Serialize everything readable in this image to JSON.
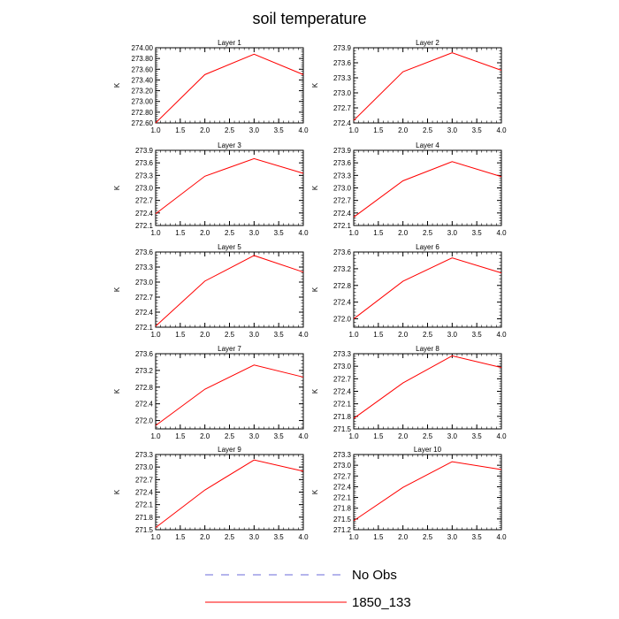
{
  "title": "soil temperature",
  "legend": [
    {
      "label": "No Obs",
      "color": "#6a6ad8",
      "dashed": true
    },
    {
      "label": "1850_133",
      "color": "#ff0000",
      "dashed": false
    }
  ],
  "chart_data": [
    {
      "type": "line",
      "title": "Layer 1",
      "xlabel": "",
      "ylabel": "K",
      "xlim": [
        1.0,
        4.0
      ],
      "ylim": [
        272.6,
        274.0
      ],
      "xticks": [
        "1.0",
        "1.5",
        "2.0",
        "2.5",
        "3.0",
        "3.5",
        "4.0"
      ],
      "yticks": [
        "274.00",
        "273.80",
        "273.60",
        "273.40",
        "273.20",
        "273.00",
        "272.80",
        "272.60"
      ],
      "series": [
        {
          "name": "1850_133",
          "x": [
            1.0,
            2.0,
            3.0,
            4.0
          ],
          "values": [
            272.6,
            273.5,
            273.88,
            273.5
          ]
        }
      ]
    },
    {
      "type": "line",
      "title": "Layer 2",
      "xlabel": "",
      "ylabel": "K",
      "xlim": [
        1.0,
        4.0
      ],
      "ylim": [
        272.4,
        273.9
      ],
      "xticks": [
        "1.0",
        "1.5",
        "2.0",
        "2.5",
        "3.0",
        "3.5",
        "4.0"
      ],
      "yticks": [
        "273.9",
        "273.6",
        "273.3",
        "273.0",
        "272.7",
        "272.4"
      ],
      "series": [
        {
          "name": "1850_133",
          "x": [
            1.0,
            2.0,
            3.0,
            4.0
          ],
          "values": [
            272.45,
            273.42,
            273.8,
            273.45
          ]
        }
      ]
    },
    {
      "type": "line",
      "title": "Layer 3",
      "xlabel": "",
      "ylabel": "K",
      "xlim": [
        1.0,
        4.0
      ],
      "ylim": [
        272.1,
        273.9
      ],
      "xticks": [
        "1.0",
        "1.5",
        "2.0",
        "2.5",
        "3.0",
        "3.5",
        "4.0"
      ],
      "yticks": [
        "273.9",
        "273.6",
        "273.3",
        "273.0",
        "272.7",
        "272.4",
        "272.1"
      ],
      "series": [
        {
          "name": "1850_133",
          "x": [
            1.0,
            2.0,
            3.0,
            4.0
          ],
          "values": [
            272.38,
            273.28,
            273.7,
            273.35
          ]
        }
      ]
    },
    {
      "type": "line",
      "title": "Layer 4",
      "xlabel": "",
      "ylabel": "K",
      "xlim": [
        1.0,
        4.0
      ],
      "ylim": [
        272.1,
        273.9
      ],
      "xticks": [
        "1.0",
        "1.5",
        "2.0",
        "2.5",
        "3.0",
        "3.5",
        "4.0"
      ],
      "yticks": [
        "273.9",
        "273.6",
        "273.3",
        "273.0",
        "272.7",
        "272.4",
        "272.1"
      ],
      "series": [
        {
          "name": "1850_133",
          "x": [
            1.0,
            2.0,
            3.0,
            4.0
          ],
          "values": [
            272.3,
            273.17,
            273.63,
            273.27
          ]
        }
      ]
    },
    {
      "type": "line",
      "title": "Layer 5",
      "xlabel": "",
      "ylabel": "K",
      "xlim": [
        1.0,
        4.0
      ],
      "ylim": [
        272.1,
        273.6
      ],
      "xticks": [
        "1.0",
        "1.5",
        "2.0",
        "2.5",
        "3.0",
        "3.5",
        "4.0"
      ],
      "yticks": [
        "273.6",
        "273.3",
        "273.0",
        "272.7",
        "272.4",
        "272.1"
      ],
      "series": [
        {
          "name": "1850_133",
          "x": [
            1.0,
            2.0,
            3.0,
            4.0
          ],
          "values": [
            272.12,
            273.02,
            273.53,
            273.2
          ]
        }
      ]
    },
    {
      "type": "line",
      "title": "Layer 6",
      "xlabel": "",
      "ylabel": "K",
      "xlim": [
        1.0,
        4.0
      ],
      "ylim": [
        271.8,
        273.6
      ],
      "xticks": [
        "1.0",
        "1.5",
        "2.0",
        "2.5",
        "3.0",
        "3.5",
        "4.0"
      ],
      "yticks": [
        "273.6",
        "273.2",
        "272.8",
        "272.4",
        "272.0"
      ],
      "series": [
        {
          "name": "1850_133",
          "x": [
            1.0,
            2.0,
            3.0,
            4.0
          ],
          "values": [
            272.0,
            272.9,
            273.46,
            273.1
          ]
        }
      ]
    },
    {
      "type": "line",
      "title": "Layer 7",
      "xlabel": "",
      "ylabel": "K",
      "xlim": [
        1.0,
        4.0
      ],
      "ylim": [
        271.8,
        273.6
      ],
      "xticks": [
        "1.0",
        "1.5",
        "2.0",
        "2.5",
        "3.0",
        "3.5",
        "4.0"
      ],
      "yticks": [
        "273.6",
        "273.2",
        "272.8",
        "272.4",
        "272.0"
      ],
      "series": [
        {
          "name": "1850_133",
          "x": [
            1.0,
            2.0,
            3.0,
            4.0
          ],
          "values": [
            271.88,
            272.75,
            273.33,
            273.04
          ]
        }
      ]
    },
    {
      "type": "line",
      "title": "Layer 8",
      "xlabel": "",
      "ylabel": "K",
      "xlim": [
        1.0,
        4.0
      ],
      "ylim": [
        271.5,
        273.3
      ],
      "xticks": [
        "1.0",
        "1.5",
        "2.0",
        "2.5",
        "3.0",
        "3.5",
        "4.0"
      ],
      "yticks": [
        "273.3",
        "273.0",
        "272.7",
        "272.4",
        "272.1",
        "271.8",
        "271.5"
      ],
      "series": [
        {
          "name": "1850_133",
          "x": [
            1.0,
            2.0,
            3.0,
            4.0
          ],
          "values": [
            271.75,
            272.6,
            273.25,
            272.97
          ]
        }
      ]
    },
    {
      "type": "line",
      "title": "Layer 9",
      "xlabel": "",
      "ylabel": "K",
      "xlim": [
        1.0,
        4.0
      ],
      "ylim": [
        271.5,
        273.3
      ],
      "xticks": [
        "1.0",
        "1.5",
        "2.0",
        "2.5",
        "3.0",
        "3.5",
        "4.0"
      ],
      "yticks": [
        "273.3",
        "273.0",
        "272.7",
        "272.4",
        "272.1",
        "271.8",
        "271.5"
      ],
      "series": [
        {
          "name": "1850_133",
          "x": [
            1.0,
            2.0,
            3.0,
            4.0
          ],
          "values": [
            271.55,
            272.45,
            273.17,
            272.9
          ]
        }
      ]
    },
    {
      "type": "line",
      "title": "Layer 10",
      "xlabel": "",
      "ylabel": "K",
      "xlim": [
        1.0,
        4.0
      ],
      "ylim": [
        271.2,
        273.3
      ],
      "xticks": [
        "1.0",
        "1.5",
        "2.0",
        "2.5",
        "3.0",
        "3.5",
        "4.0"
      ],
      "yticks": [
        "273.3",
        "273.0",
        "272.7",
        "272.4",
        "272.1",
        "271.8",
        "271.5",
        "271.2"
      ],
      "series": [
        {
          "name": "1850_133",
          "x": [
            1.0,
            2.0,
            3.0,
            4.0
          ],
          "values": [
            271.45,
            272.38,
            273.1,
            272.88
          ]
        }
      ]
    }
  ]
}
